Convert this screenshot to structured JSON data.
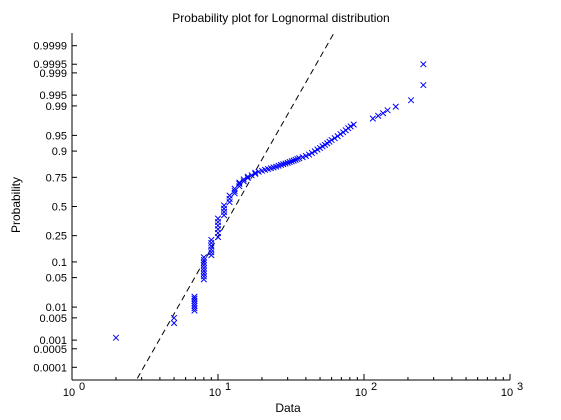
{
  "chart_data": {
    "type": "scatter",
    "title": "Probability plot for Lognormal distribution",
    "xlabel": "Data",
    "ylabel": "Probability",
    "xscale": "log",
    "yscale": "probability-normal",
    "xlim": [
      1,
      1000
    ],
    "ylim": [
      3e-05,
      0.99997
    ],
    "x_ticks": [
      {
        "value": 1,
        "base": "10",
        "exp": "0"
      },
      {
        "value": 10,
        "base": "10",
        "exp": "1"
      },
      {
        "value": 100,
        "base": "10",
        "exp": "2"
      },
      {
        "value": 1000,
        "base": "10",
        "exp": "3"
      }
    ],
    "y_ticks": [
      {
        "value": 0.0001,
        "label": "0.0001"
      },
      {
        "value": 0.0005,
        "label": "0.0005"
      },
      {
        "value": 0.001,
        "label": "0.001"
      },
      {
        "value": 0.005,
        "label": "0.005"
      },
      {
        "value": 0.01,
        "label": "0.01"
      },
      {
        "value": 0.05,
        "label": "0.05"
      },
      {
        "value": 0.1,
        "label": "0.1"
      },
      {
        "value": 0.25,
        "label": "0.25"
      },
      {
        "value": 0.5,
        "label": "0.5"
      },
      {
        "value": 0.75,
        "label": "0.75"
      },
      {
        "value": 0.9,
        "label": "0.9"
      },
      {
        "value": 0.95,
        "label": "0.95"
      },
      {
        "value": 0.99,
        "label": "0.99"
      },
      {
        "value": 0.995,
        "label": "0.995"
      },
      {
        "value": 0.999,
        "label": "0.999"
      },
      {
        "value": 0.9995,
        "label": "0.9995"
      },
      {
        "value": 0.9999,
        "label": "0.9999"
      }
    ],
    "grid": false,
    "marker": "x",
    "marker_color": "#0000ff",
    "fit_line": {
      "style": "dashed",
      "color": "#000000",
      "x": [
        2.8,
        62.3
      ],
      "p": [
        3.5e-05,
        0.99997
      ]
    },
    "series": [
      {
        "points": [
          [
            2,
            0.0012
          ],
          [
            5,
            0.0035
          ],
          [
            5,
            0.005
          ],
          [
            6.9,
            0.008
          ],
          [
            6.9,
            0.0093
          ],
          [
            6.9,
            0.0108
          ],
          [
            6.9,
            0.0125
          ],
          [
            6.9,
            0.0145
          ],
          [
            6.9,
            0.0165
          ],
          [
            6.9,
            0.0185
          ],
          [
            8,
            0.046
          ],
          [
            8,
            0.053
          ],
          [
            8,
            0.06
          ],
          [
            8,
            0.068
          ],
          [
            8,
            0.077
          ],
          [
            8,
            0.087
          ],
          [
            8,
            0.097
          ],
          [
            8,
            0.108
          ],
          [
            8,
            0.12
          ],
          [
            9,
            0.13
          ],
          [
            9,
            0.145
          ],
          [
            9,
            0.16
          ],
          [
            9,
            0.18
          ],
          [
            9,
            0.2
          ],
          [
            9,
            0.22
          ],
          [
            10,
            0.24
          ],
          [
            10,
            0.27
          ],
          [
            10,
            0.3
          ],
          [
            10,
            0.33
          ],
          [
            10,
            0.36
          ],
          [
            10,
            0.39
          ],
          [
            11,
            0.42
          ],
          [
            11,
            0.45
          ],
          [
            11,
            0.48
          ],
          [
            11,
            0.51
          ],
          [
            12,
            0.54
          ],
          [
            12,
            0.57
          ],
          [
            12,
            0.6
          ],
          [
            13,
            0.62
          ],
          [
            13,
            0.64
          ],
          [
            13,
            0.66
          ],
          [
            14,
            0.68
          ],
          [
            14,
            0.7
          ],
          [
            14,
            0.71
          ],
          [
            15,
            0.72
          ],
          [
            15,
            0.735
          ],
          [
            16,
            0.745
          ],
          [
            16,
            0.755
          ],
          [
            17,
            0.765
          ],
          [
            18,
            0.775
          ],
          [
            18,
            0.782
          ],
          [
            19,
            0.789
          ],
          [
            20,
            0.796
          ],
          [
            21,
            0.802
          ],
          [
            22,
            0.807
          ],
          [
            23,
            0.812
          ],
          [
            24,
            0.817
          ],
          [
            25,
            0.822
          ],
          [
            26,
            0.827
          ],
          [
            27,
            0.832
          ],
          [
            28,
            0.836
          ],
          [
            29,
            0.84
          ],
          [
            30,
            0.844
          ],
          [
            31,
            0.848
          ],
          [
            32,
            0.852
          ],
          [
            33,
            0.856
          ],
          [
            34,
            0.86
          ],
          [
            35,
            0.864
          ],
          [
            36,
            0.868
          ],
          [
            38,
            0.873
          ],
          [
            40,
            0.879
          ],
          [
            42,
            0.885
          ],
          [
            44,
            0.892
          ],
          [
            46,
            0.899
          ],
          [
            48,
            0.906
          ],
          [
            50,
            0.912
          ],
          [
            52,
            0.918
          ],
          [
            54,
            0.923
          ],
          [
            56,
            0.928
          ],
          [
            58,
            0.933
          ],
          [
            60,
            0.938
          ],
          [
            63,
            0.943
          ],
          [
            66,
            0.948
          ],
          [
            69,
            0.953
          ],
          [
            72,
            0.957
          ],
          [
            75,
            0.961
          ],
          [
            78,
            0.965
          ],
          [
            81,
            0.968
          ],
          [
            85,
            0.971
          ],
          [
            115,
            0.979
          ],
          [
            125,
            0.982
          ],
          [
            135,
            0.9845
          ],
          [
            145,
            0.987
          ],
          [
            165,
            0.9895
          ],
          [
            210,
            0.993
          ],
          [
            255,
            0.9975
          ],
          [
            255,
            0.9995
          ]
        ]
      }
    ]
  }
}
